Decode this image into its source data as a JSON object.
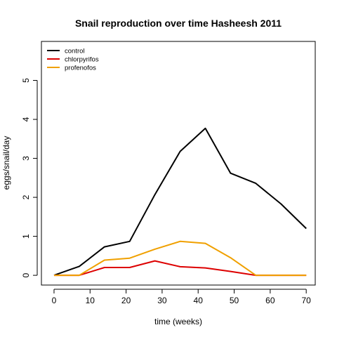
{
  "chart_data": {
    "type": "line",
    "title": "Snail reproduction over time Hasheesh 2011",
    "xlabel": "time (weeks)",
    "ylabel": "eggs/snail/day",
    "xlim": [
      -3.5,
      72.5
    ],
    "ylim": [
      -0.25,
      6.0
    ],
    "x_ticks": [
      0,
      10,
      20,
      30,
      40,
      50,
      60,
      70
    ],
    "y_ticks": [
      0,
      1,
      2,
      3,
      4,
      5
    ],
    "grid": false,
    "legend_position": "top-left",
    "series": [
      {
        "name": "control",
        "color": "#000000",
        "x": [
          0,
          7,
          14,
          21,
          28,
          35,
          42,
          49,
          56,
          63,
          70
        ],
        "y": [
          0,
          0.23,
          0.73,
          0.87,
          2.07,
          3.18,
          3.77,
          2.62,
          2.36,
          1.83,
          1.2
        ]
      },
      {
        "name": "chlorpyrifos",
        "color": "#dd0000",
        "x": [
          0,
          7,
          14,
          21,
          28,
          35,
          42,
          49,
          56,
          63,
          70
        ],
        "y": [
          0,
          0,
          0.2,
          0.2,
          0.37,
          0.22,
          0.19,
          0.1,
          0,
          0,
          0
        ]
      },
      {
        "name": "profenofos",
        "color": "#f0a000",
        "x": [
          0,
          7,
          14,
          21,
          28,
          35,
          42,
          49,
          56,
          63,
          70
        ],
        "y": [
          0,
          0,
          0.39,
          0.44,
          0.67,
          0.87,
          0.82,
          0.45,
          0,
          0,
          0
        ]
      }
    ]
  }
}
